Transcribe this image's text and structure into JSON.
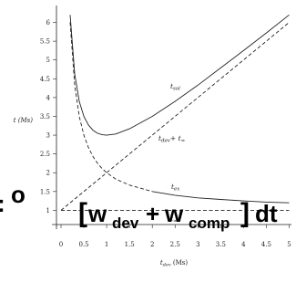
{
  "chart_data": {
    "type": "line",
    "title": "",
    "xlabel": "t_dev (Ms)",
    "ylabel": "t (Ms)",
    "xlim": [
      -0.1,
      5.05
    ],
    "ylim": [
      0.5,
      6.45
    ],
    "xticks": [
      "0",
      "0.5",
      "1",
      "1.5",
      "2",
      "2.5",
      "3",
      "3.5",
      "4",
      "4.5",
      "5"
    ],
    "yticks": [
      "1",
      "1.5",
      "2",
      "2.5",
      "3",
      "3.5",
      "4",
      "4.5",
      "5",
      "5.5",
      "6"
    ],
    "grid": false,
    "series": [
      {
        "name": "t_sol",
        "style": "solid",
        "x": [
          0.2,
          0.3,
          0.4,
          0.5,
          0.6,
          0.7,
          0.8,
          0.9,
          1.0,
          1.2,
          1.5,
          2.0,
          2.5,
          3.0,
          3.5,
          4.0,
          4.5,
          5.0
        ],
        "y": [
          6.2,
          4.63,
          3.9,
          3.5,
          3.27,
          3.13,
          3.05,
          3.01,
          3.0,
          3.03,
          3.17,
          3.5,
          3.9,
          4.33,
          4.79,
          5.25,
          5.72,
          6.2
        ]
      },
      {
        "name": "t_dev + t_∞",
        "style": "dashed",
        "x": [
          0.0,
          5.0
        ],
        "y": [
          1.0,
          6.0
        ]
      },
      {
        "name": "t_ex",
        "style": "mixed",
        "x": [
          0.2,
          0.3,
          0.4,
          0.5,
          0.6,
          0.7,
          0.8,
          0.9,
          1.0,
          1.2,
          1.5,
          2.0,
          2.5,
          3.0,
          3.5,
          4.0,
          4.5,
          5.0
        ],
        "y": [
          6.0,
          4.33,
          3.5,
          3.0,
          2.67,
          2.43,
          2.25,
          2.11,
          2.0,
          1.83,
          1.67,
          1.5,
          1.4,
          1.33,
          1.29,
          1.25,
          1.22,
          1.2
        ]
      },
      {
        "name": "t_∞",
        "style": "dashed",
        "x": [
          0.0,
          5.0
        ],
        "y": [
          1.0,
          1.0
        ]
      }
    ],
    "overlay_formula": {
      "colon": ":",
      "o": "o",
      "lbracket": "[",
      "w1": "w",
      "sub1": "dev",
      "plus": "+",
      "w2": "w",
      "sub2": "comp",
      "rbracket": "]",
      "dt": "dt"
    }
  },
  "labels": {
    "t_sol": "t",
    "t_sol_sub": "sol",
    "t_dev": "t",
    "t_dev_sub": "dev",
    "t_dev_plus": "+ t",
    "t_inf_sub": "∞",
    "t_ex": "t",
    "t_ex_sub": "ex",
    "t_inf": "t",
    "t_inf_sub2": "∞",
    "ylabel": "t (Ms)",
    "xlabel_t": "t",
    "xlabel_sub": "dev",
    "xlabel_unit": " (Ms)"
  }
}
